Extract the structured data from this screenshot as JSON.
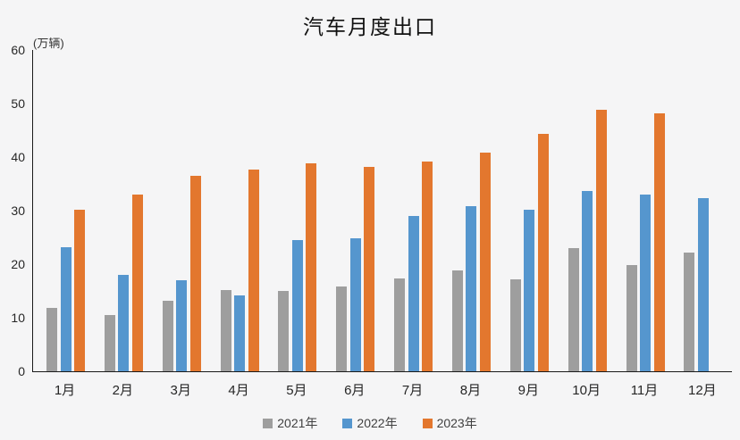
{
  "title": "汽车月度出口",
  "unit_label": "(万辆)",
  "chart_data": {
    "type": "bar",
    "title": "汽车月度出口",
    "xlabel": "",
    "ylabel": "(万辆)",
    "ylim": [
      0,
      60
    ],
    "yticks": [
      0,
      10,
      20,
      30,
      40,
      50,
      60
    ],
    "grid": false,
    "legend_position": "bottom",
    "categories": [
      "1月",
      "2月",
      "3月",
      "4月",
      "5月",
      "6月",
      "7月",
      "8月",
      "9月",
      "10月",
      "11月",
      "12月"
    ],
    "series": [
      {
        "name": "2021年",
        "color": "#9e9e9e",
        "values": [
          11.9,
          10.5,
          13.2,
          15.1,
          15.0,
          15.8,
          17.4,
          18.8,
          17.2,
          23.0,
          19.8,
          22.2
        ]
      },
      {
        "name": "2022年",
        "color": "#5596ce",
        "values": [
          23.1,
          18.0,
          17.0,
          14.1,
          24.5,
          24.9,
          29.0,
          30.8,
          30.1,
          33.7,
          33.0,
          32.4
        ]
      },
      {
        "name": "2023年",
        "color": "#e3772e",
        "values": [
          30.1,
          33.0,
          36.5,
          37.6,
          38.9,
          38.2,
          39.2,
          40.8,
          44.4,
          48.8,
          48.2,
          null
        ]
      }
    ]
  },
  "colors": {
    "background": "#f5f5f6",
    "axis": "#1a1a1a",
    "tick_text": "#262626",
    "legend_text": "#404040"
  }
}
